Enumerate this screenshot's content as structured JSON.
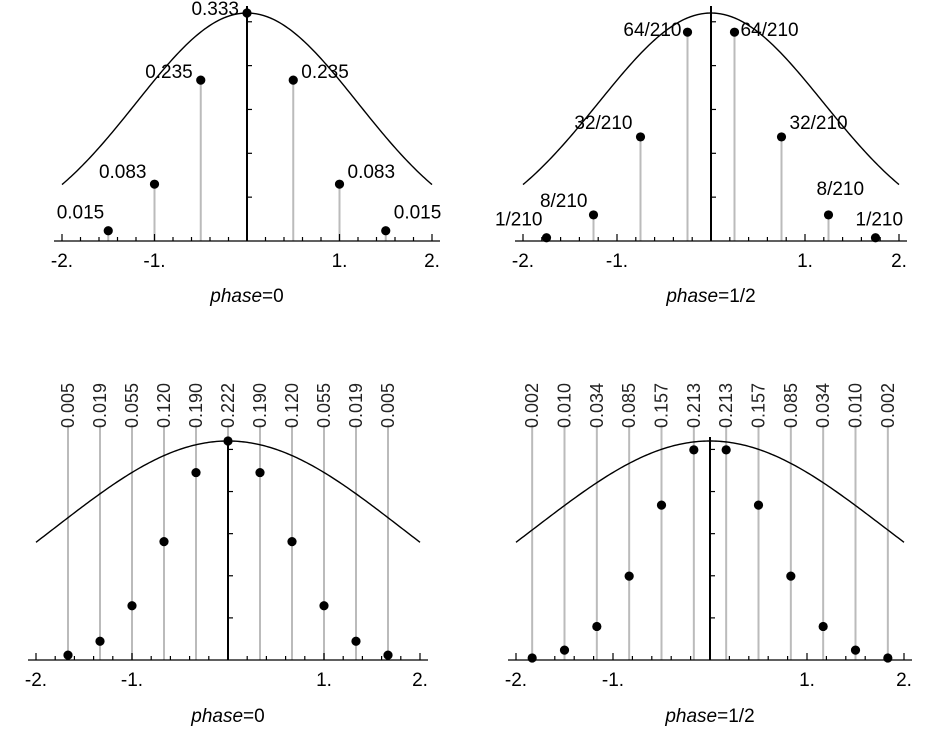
{
  "chart_data": [
    {
      "type": "scatter",
      "caption_italic": "phase",
      "caption_rest": "=0",
      "xlim": [
        -2,
        2
      ],
      "xticks": [
        "-2.",
        "-1.",
        "1.",
        "2."
      ],
      "xtick_values": [
        -2,
        -1,
        1,
        2
      ],
      "peak": 0.333,
      "points": [
        {
          "x": -1.5,
          "y": 0.015,
          "label": "0.015"
        },
        {
          "x": -1.0,
          "y": 0.083,
          "label": "0.083"
        },
        {
          "x": -0.5,
          "y": 0.235,
          "label": "0.235"
        },
        {
          "x": 0.0,
          "y": 0.333,
          "label": "0.333"
        },
        {
          "x": 0.5,
          "y": 0.235,
          "label": "0.235"
        },
        {
          "x": 1.0,
          "y": 0.083,
          "label": "0.083"
        },
        {
          "x": 1.5,
          "y": 0.015,
          "label": "0.015"
        }
      ]
    },
    {
      "type": "scatter",
      "caption_italic": "phase",
      "caption_rest": "=1/2",
      "xlim": [
        -2,
        2
      ],
      "xticks": [
        "-2.",
        "-1.",
        "1.",
        "2."
      ],
      "xtick_values": [
        -2,
        -1,
        1,
        2
      ],
      "peak": 0.333,
      "points": [
        {
          "x": -1.75,
          "y": 0.00476,
          "label": "1/210"
        },
        {
          "x": -1.25,
          "y": 0.0381,
          "label": "8/210"
        },
        {
          "x": -0.75,
          "y": 0.152,
          "label": "32/210"
        },
        {
          "x": -0.25,
          "y": 0.305,
          "label": "64/210"
        },
        {
          "x": 0.25,
          "y": 0.305,
          "label": "64/210"
        },
        {
          "x": 0.75,
          "y": 0.152,
          "label": "32/210"
        },
        {
          "x": 1.25,
          "y": 0.0381,
          "label": "8/210"
        },
        {
          "x": 1.75,
          "y": 0.00476,
          "label": "1/210"
        }
      ]
    },
    {
      "type": "scatter",
      "caption_italic": "phase",
      "caption_rest": "=0",
      "xlim": [
        -2,
        2
      ],
      "xticks": [
        "-2.",
        "-1.",
        "1.",
        "2."
      ],
      "xtick_values": [
        -2,
        -1,
        1,
        2
      ],
      "peak": 0.222,
      "points": [
        {
          "x": -1.6667,
          "y": 0.005,
          "label": "0.005"
        },
        {
          "x": -1.3333,
          "y": 0.019,
          "label": "0.019"
        },
        {
          "x": -1.0,
          "y": 0.055,
          "label": "0.055"
        },
        {
          "x": -0.6667,
          "y": 0.12,
          "label": "0.120"
        },
        {
          "x": -0.3333,
          "y": 0.19,
          "label": "0.190"
        },
        {
          "x": 0.0,
          "y": 0.222,
          "label": "0.222"
        },
        {
          "x": 0.3333,
          "y": 0.19,
          "label": "0.190"
        },
        {
          "x": 0.6667,
          "y": 0.12,
          "label": "0.120"
        },
        {
          "x": 1.0,
          "y": 0.055,
          "label": "0.055"
        },
        {
          "x": 1.3333,
          "y": 0.019,
          "label": "0.019"
        },
        {
          "x": 1.6667,
          "y": 0.005,
          "label": "0.005"
        }
      ]
    },
    {
      "type": "scatter",
      "caption_italic": "phase",
      "caption_rest": "=1/2",
      "xlim": [
        -2,
        2
      ],
      "xticks": [
        "-2.",
        "-1.",
        "1.",
        "2."
      ],
      "xtick_values": [
        -2,
        -1,
        1,
        2
      ],
      "peak": 0.222,
      "points": [
        {
          "x": -1.8333,
          "y": 0.002,
          "label": "0.002"
        },
        {
          "x": -1.5,
          "y": 0.01,
          "label": "0.010"
        },
        {
          "x": -1.1667,
          "y": 0.034,
          "label": "0.034"
        },
        {
          "x": -0.8333,
          "y": 0.085,
          "label": "0.085"
        },
        {
          "x": -0.5,
          "y": 0.157,
          "label": "0.157"
        },
        {
          "x": -0.1667,
          "y": 0.213,
          "label": "0.213"
        },
        {
          "x": 0.1667,
          "y": 0.213,
          "label": "0.213"
        },
        {
          "x": 0.5,
          "y": 0.157,
          "label": "0.157"
        },
        {
          "x": 0.8333,
          "y": 0.085,
          "label": "0.085"
        },
        {
          "x": 1.1667,
          "y": 0.034,
          "label": "0.034"
        },
        {
          "x": 1.5,
          "y": 0.01,
          "label": "0.010"
        },
        {
          "x": 1.8333,
          "y": 0.002,
          "label": "0.002"
        }
      ]
    }
  ]
}
